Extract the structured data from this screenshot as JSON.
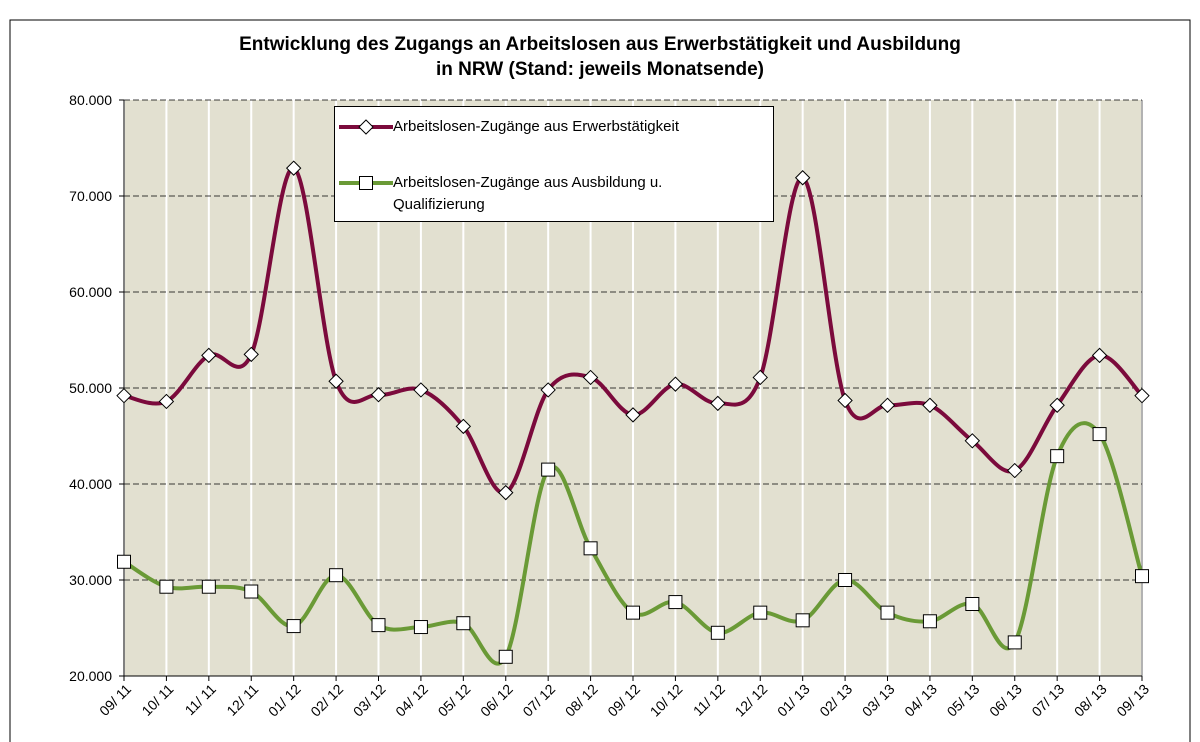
{
  "chart_data": {
    "type": "line",
    "title": "Entwicklung des Zugangs an Arbeitslosen aus Erwerbstätigkeit und Ausbildung\nin NRW (Stand: jeweils Monatsende)",
    "categories": [
      "09/ 11",
      "10/ 11",
      "11/ 11",
      "12/ 11",
      "01/ 12",
      "02/ 12",
      "03/ 12",
      "04/ 12",
      "05/ 12",
      "06/ 12",
      "07/ 12",
      "08/ 12",
      "09/ 12",
      "10/ 12",
      "11/ 12",
      "12/ 12",
      "01/ 13",
      "02/ 13",
      "03/ 13",
      "04/ 13",
      "05/ 13",
      "06/ 13",
      "07/ 13",
      "08/ 13",
      "09/ 13"
    ],
    "series": [
      {
        "name": "Arbeitslosen-Zugänge aus Erwerbstätigkeit",
        "color": "#7b0a3c",
        "marker": "diamond",
        "values": [
          49200,
          48600,
          53400,
          53500,
          72900,
          50700,
          49300,
          49800,
          46000,
          39100,
          49800,
          51100,
          47200,
          50400,
          48400,
          51100,
          71900,
          48700,
          48200,
          48200,
          44500,
          41400,
          48200,
          53400,
          49200
        ]
      },
      {
        "name": "Arbeitslosen-Zugänge aus Ausbildung u. Qualifizierung",
        "color": "#6a9a36",
        "marker": "square",
        "values": [
          31900,
          29300,
          29300,
          28800,
          25200,
          30500,
          25300,
          25100,
          25500,
          22000,
          41500,
          33300,
          26600,
          27700,
          24500,
          26600,
          25800,
          30000,
          26600,
          25700,
          27500,
          23500,
          42900,
          45200,
          30400
        ]
      }
    ],
    "ylim": [
      20000,
      80000
    ],
    "yticks": [
      {
        "value": 20000,
        "label": "20.000"
      },
      {
        "value": 30000,
        "label": "30.000"
      },
      {
        "value": 40000,
        "label": "40.000"
      },
      {
        "value": 50000,
        "label": "50.000"
      },
      {
        "value": 60000,
        "label": "60.000"
      },
      {
        "value": 70000,
        "label": "70.000"
      },
      {
        "value": 80000,
        "label": "80.000"
      }
    ],
    "grid": true,
    "background": "#e2e0d0"
  }
}
